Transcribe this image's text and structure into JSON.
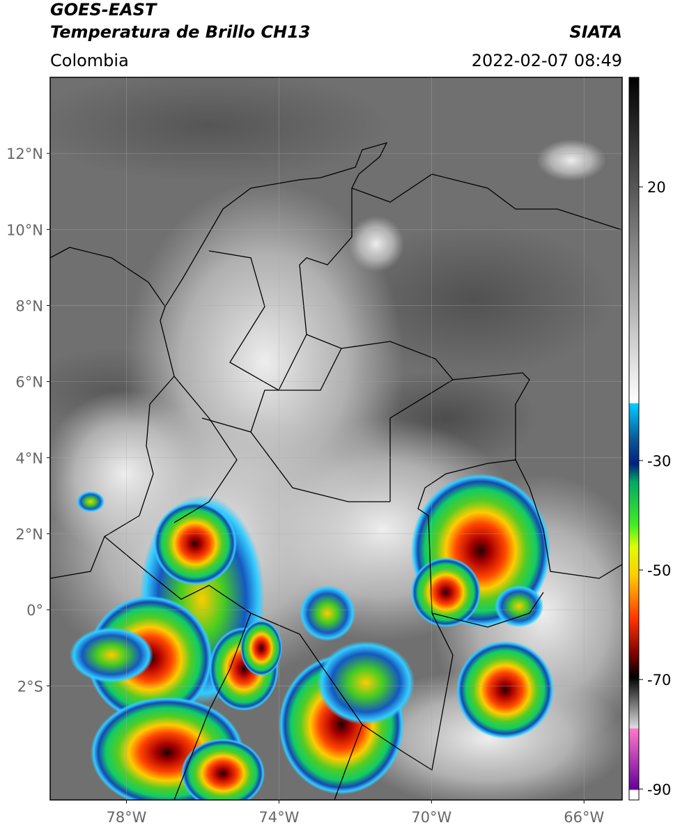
{
  "header": {
    "title": "GOES-EAST",
    "subtitle": "Temperatura de Brillo CH13",
    "source": "SIATA",
    "region": "Colombia",
    "datetime": "2022-02-07 08:49"
  },
  "map": {
    "xlim": [
      -80,
      -65
    ],
    "ylim": [
      -5,
      14
    ],
    "xticks": [
      {
        "value": -78,
        "label": "78°W"
      },
      {
        "value": -74,
        "label": "74°W"
      },
      {
        "value": -70,
        "label": "70°W"
      },
      {
        "value": -66,
        "label": "66°W"
      }
    ],
    "yticks": [
      {
        "value": 12,
        "label": "12°N"
      },
      {
        "value": 10,
        "label": "10°N"
      },
      {
        "value": 8,
        "label": "8°N"
      },
      {
        "value": 6,
        "label": "6°N"
      },
      {
        "value": 4,
        "label": "4°N"
      },
      {
        "value": 2,
        "label": "2°N"
      },
      {
        "value": 0,
        "label": "0°"
      },
      {
        "value": -2,
        "label": "2°S"
      }
    ],
    "grid": true
  },
  "colorbar": {
    "clim": [
      -92,
      40
    ],
    "ticks": [
      20,
      -30,
      -50,
      -70,
      -90
    ]
  }
}
